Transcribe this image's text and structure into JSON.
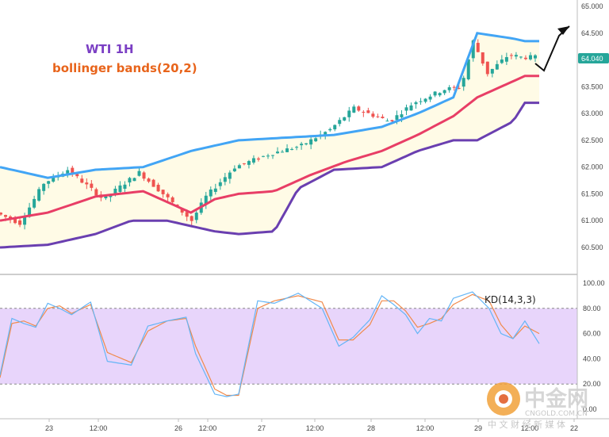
{
  "colors": {
    "up": "#26a69a",
    "down": "#ef5350",
    "upper_band": "#42a5f5",
    "middle_band": "#e83e66",
    "lower_band": "#6a3fb0",
    "band_fill": "#fffbe6",
    "k_line": "#64b5f6",
    "d_line": "#f08a4b",
    "kd_zone": "#e8d5fb",
    "title_wti": "#7b3fc4",
    "title_bb": "#e8641b",
    "price_tag": "#26a69a"
  },
  "annotation": {
    "title": "WTI 1H",
    "subtitle": "bollinger bands(20,2)",
    "kd_label": "KD(14,3,3)",
    "last_price": "64.040"
  },
  "watermark": {
    "brand": "中金网",
    "url": "CNGOLD.COM.CN",
    "slogan": "中 文 财 经 新 媒 体"
  },
  "chart_data": [
    {
      "type": "candlestick",
      "x_ticks": [
        "23",
        "12:00",
        "26",
        "12:00",
        "27",
        "12:00",
        "28",
        "12:00",
        "29",
        "12:00",
        "22"
      ],
      "y_ticks": [
        "65.000",
        "64.500",
        "64.000",
        "63.500",
        "63.000",
        "62.500",
        "62.000",
        "61.500",
        "61.000",
        "60.500"
      ],
      "ylim": [
        60.4,
        65.05
      ],
      "n_bars": 120,
      "candles_approx": {
        "open_ranges": [
          [
            0,
            61.15
          ],
          [
            10,
            60.95
          ],
          [
            20,
            61.7
          ],
          [
            30,
            61.95
          ],
          [
            45,
            61.4
          ],
          [
            60,
            61.9
          ],
          [
            70,
            61.5
          ],
          [
            82,
            61.0
          ],
          [
            88,
            61.45
          ],
          [
            100,
            62.0
          ],
          [
            115,
            62.25
          ],
          [
            128,
            62.4
          ],
          [
            140,
            62.7
          ],
          [
            150,
            63.1
          ],
          [
            165,
            62.85
          ],
          [
            175,
            63.2
          ],
          [
            188,
            63.45
          ],
          [
            195,
            63.5
          ],
          [
            200,
            64.35
          ],
          [
            206,
            63.75
          ],
          [
            215,
            64.1
          ],
          [
            220,
            64.05
          ]
        ]
      },
      "bands": {
        "upper": [
          [
            0,
            62.0
          ],
          [
            20,
            61.8
          ],
          [
            40,
            61.95
          ],
          [
            60,
            62.0
          ],
          [
            80,
            62.3
          ],
          [
            100,
            62.5
          ],
          [
            120,
            62.55
          ],
          [
            140,
            62.6
          ],
          [
            160,
            62.75
          ],
          [
            175,
            63.0
          ],
          [
            190,
            63.3
          ],
          [
            200,
            64.5
          ],
          [
            215,
            64.4
          ],
          [
            220,
            64.35
          ]
        ],
        "middle": [
          [
            0,
            61.0
          ],
          [
            20,
            61.15
          ],
          [
            40,
            61.45
          ],
          [
            60,
            61.55
          ],
          [
            70,
            61.35
          ],
          [
            80,
            61.15
          ],
          [
            90,
            61.4
          ],
          [
            100,
            61.5
          ],
          [
            115,
            61.55
          ],
          [
            130,
            61.85
          ],
          [
            145,
            62.1
          ],
          [
            160,
            62.3
          ],
          [
            175,
            62.6
          ],
          [
            190,
            62.95
          ],
          [
            200,
            63.3
          ],
          [
            215,
            63.6
          ],
          [
            220,
            63.7
          ]
        ],
        "lower": [
          [
            0,
            60.5
          ],
          [
            20,
            60.55
          ],
          [
            40,
            60.75
          ],
          [
            55,
            61.0
          ],
          [
            70,
            61.0
          ],
          [
            80,
            60.9
          ],
          [
            90,
            60.8
          ],
          [
            100,
            60.75
          ],
          [
            115,
            60.8
          ],
          [
            125,
            61.6
          ],
          [
            140,
            61.95
          ],
          [
            160,
            62.0
          ],
          [
            175,
            62.3
          ],
          [
            190,
            62.5
          ],
          [
            200,
            62.5
          ],
          [
            215,
            62.85
          ],
          [
            220,
            63.2
          ]
        ]
      },
      "last_price": 64.04
    },
    {
      "type": "line",
      "title": "KD(14,3,3)",
      "y_ticks": [
        "100.00",
        "80.00",
        "60.00",
        "40.00",
        "20.00",
        "0.00"
      ],
      "ylim": [
        0,
        100
      ],
      "overbought": 80,
      "oversold": 20,
      "series": [
        {
          "values": [
            [
              0,
              27
            ],
            [
              5,
              72
            ],
            [
              10,
              68
            ],
            [
              15,
              65
            ],
            [
              20,
              84
            ],
            [
              25,
              80
            ],
            [
              30,
              75
            ],
            [
              38,
              85
            ],
            [
              45,
              38
            ],
            [
              55,
              35
            ],
            [
              62,
              66
            ],
            [
              70,
              70
            ],
            [
              78,
              73
            ],
            [
              82,
              44
            ],
            [
              90,
              12
            ],
            [
              95,
              10
            ],
            [
              100,
              12
            ],
            [
              108,
              86
            ],
            [
              115,
              84
            ],
            [
              125,
              92
            ],
            [
              135,
              80
            ],
            [
              142,
              50
            ],
            [
              148,
              57
            ],
            [
              155,
              71
            ],
            [
              160,
              90
            ],
            [
              165,
              83
            ],
            [
              170,
              75
            ],
            [
              175,
              60
            ],
            [
              180,
              72
            ],
            [
              185,
              70
            ],
            [
              190,
              88
            ],
            [
              198,
              93
            ],
            [
              205,
              80
            ],
            [
              210,
              60
            ],
            [
              215,
              56
            ],
            [
              220,
              70
            ],
            [
              226,
              52
            ]
          ]
        },
        {
          "values": [
            [
              0,
              25
            ],
            [
              5,
              68
            ],
            [
              10,
              70
            ],
            [
              15,
              66
            ],
            [
              20,
              80
            ],
            [
              25,
              82
            ],
            [
              30,
              76
            ],
            [
              38,
              83
            ],
            [
              45,
              45
            ],
            [
              55,
              37
            ],
            [
              62,
              62
            ],
            [
              70,
              70
            ],
            [
              78,
              72
            ],
            [
              82,
              50
            ],
            [
              90,
              16
            ],
            [
              95,
              11
            ],
            [
              100,
              11
            ],
            [
              108,
              80
            ],
            [
              115,
              86
            ],
            [
              125,
              90
            ],
            [
              135,
              85
            ],
            [
              142,
              55
            ],
            [
              148,
              55
            ],
            [
              155,
              67
            ],
            [
              160,
              86
            ],
            [
              165,
              86
            ],
            [
              170,
              78
            ],
            [
              175,
              65
            ],
            [
              180,
              68
            ],
            [
              185,
              72
            ],
            [
              190,
              83
            ],
            [
              198,
              91
            ],
            [
              205,
              86
            ],
            [
              210,
              67
            ],
            [
              215,
              56
            ],
            [
              220,
              66
            ],
            [
              226,
              60
            ]
          ]
        }
      ]
    }
  ]
}
